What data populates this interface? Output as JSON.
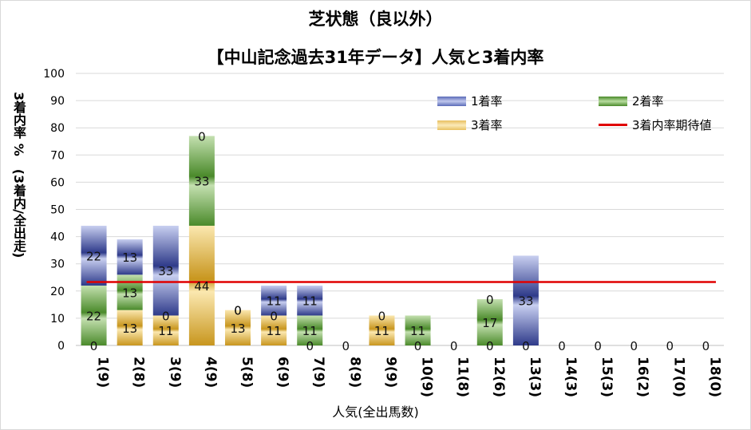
{
  "chart_data": {
    "type": "bar",
    "title": "芝状態（良以外）",
    "subtitle": "【中山記念過去31年データ】人気と3着内率",
    "xlabel": "人気(全出馬数)",
    "ylabel": "3着内率 %　(3着内/全出走)",
    "ylim": [
      0,
      100
    ],
    "yticks": [
      0,
      10,
      20,
      30,
      40,
      50,
      60,
      70,
      80,
      90,
      100
    ],
    "categories": [
      "1(9)",
      "2(8)",
      "3(9)",
      "4(9)",
      "5(8)",
      "6(9)",
      "7(9)",
      "8(9)",
      "9(9)",
      "10(9)",
      "11(8)",
      "12(6)",
      "13(3)",
      "14(3)",
      "15(3)",
      "16(2)",
      "17(0)",
      "18(0)"
    ],
    "series": [
      {
        "name": "3着率",
        "color": "#d4a830",
        "values": [
          0,
          13,
          11,
          44,
          13,
          11,
          0,
          0,
          11,
          0,
          0,
          0,
          0,
          0,
          0,
          0,
          0,
          0
        ]
      },
      {
        "name": "2着率",
        "color": "#5a9a3a",
        "values": [
          22,
          13,
          0,
          33,
          0,
          0,
          11,
          0,
          0,
          11,
          0,
          17,
          0,
          0,
          0,
          0,
          0,
          0
        ]
      },
      {
        "name": "1着率",
        "color": "#3a4a9a",
        "values": [
          22,
          13,
          33,
          0,
          0,
          11,
          11,
          0,
          0,
          0,
          0,
          0,
          33,
          0,
          0,
          0,
          0,
          0
        ]
      }
    ],
    "data_labels": {
      "3着率": [
        "0",
        "13",
        "11",
        "44",
        "13",
        "11",
        "0",
        "0",
        "11",
        "0",
        "0",
        "0",
        "0",
        "0",
        "0",
        "0",
        "0",
        "0"
      ],
      "2着率": [
        "22",
        "13",
        "0",
        "33",
        "0",
        "0",
        "11",
        "",
        "0",
        "11",
        "",
        "17",
        "",
        "",
        "",
        "",
        "",
        ""
      ],
      "1着率": [
        "22",
        "13",
        "33",
        "0",
        "0",
        "11",
        "11",
        "",
        "",
        "",
        "",
        "0",
        "33",
        "",
        "",
        "",
        "",
        ""
      ]
    },
    "expected_line": {
      "name": "3着内率期待値",
      "value": 23.3,
      "color": "#e00000"
    },
    "legend_position": "top-right",
    "grid": true
  }
}
